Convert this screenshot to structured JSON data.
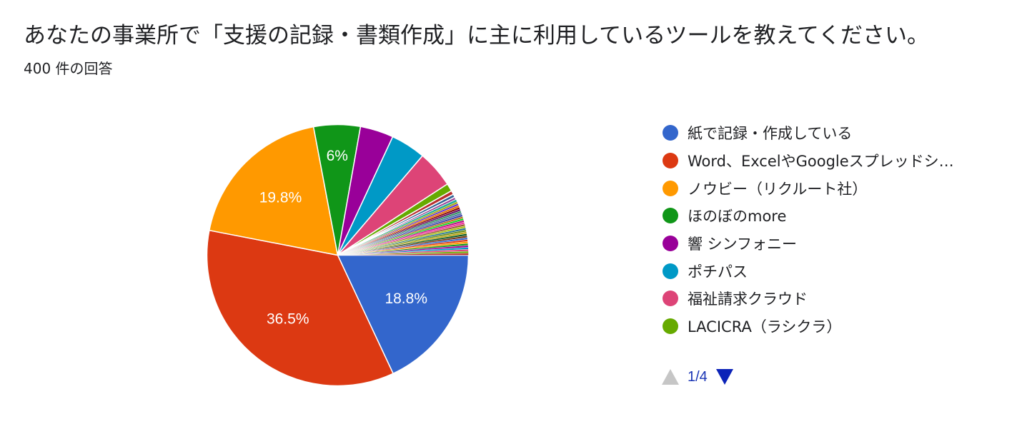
{
  "question": {
    "title": "あなたの事業所で「支援の記録・書類作成」に主に利用しているツールを教えてください。",
    "response_count": "400 件の回答"
  },
  "chart_data": {
    "type": "pie",
    "title": "あなたの事業所で「支援の記録・書類作成」に主に利用しているツールを教えてください。",
    "slices": [
      {
        "label": "紙で記録・作成している",
        "value": 18.8,
        "color": "#3366cc",
        "data_label": "18.8%"
      },
      {
        "label": "Word、ExcelやGoogleスプレッドシ…",
        "value": 36.5,
        "color": "#dc3912",
        "data_label": "36.5%"
      },
      {
        "label": "ノウビー（リクルート社）",
        "value": 19.8,
        "color": "#ff9900",
        "data_label": "19.8%"
      },
      {
        "label": "ほのぼのmore",
        "value": 6.0,
        "color": "#109618",
        "data_label": "6%"
      },
      {
        "label": "響 シンフォニー",
        "value": 4.3,
        "color": "#990099",
        "data_label": ""
      },
      {
        "label": "ポチパス",
        "value": 4.5,
        "color": "#0099c6",
        "data_label": ""
      },
      {
        "label": "福祉請求クラウド",
        "value": 4.8,
        "color": "#dd4477",
        "data_label": ""
      },
      {
        "label": "LACICRA（ラシクラ）",
        "value": 1.0,
        "color": "#66aa00",
        "data_label": ""
      },
      {
        "label": "",
        "value": 0.5,
        "color": "#b82e2e",
        "data_label": ""
      },
      {
        "label": "",
        "value": 0.4,
        "color": "#316395",
        "data_label": ""
      },
      {
        "label": "",
        "value": 0.35,
        "color": "#994499",
        "data_label": ""
      },
      {
        "label": "",
        "value": 0.3,
        "color": "#22aa99",
        "data_label": ""
      },
      {
        "label": "",
        "value": 0.25,
        "color": "#aaaa11",
        "data_label": ""
      },
      {
        "label": "",
        "value": 0.25,
        "color": "#6633cc",
        "data_label": ""
      },
      {
        "label": "",
        "value": 0.25,
        "color": "#e67300",
        "data_label": ""
      },
      {
        "label": "",
        "value": 0.25,
        "color": "#8b0707",
        "data_label": ""
      },
      {
        "label": "",
        "value": 0.25,
        "color": "#651067",
        "data_label": ""
      },
      {
        "label": "",
        "value": 0.25,
        "color": "#329262",
        "data_label": ""
      },
      {
        "label": "",
        "value": 0.25,
        "color": "#5574a6",
        "data_label": ""
      },
      {
        "label": "",
        "value": 0.25,
        "color": "#3b3eac",
        "data_label": ""
      },
      {
        "label": "",
        "value": 0.25,
        "color": "#b77322",
        "data_label": ""
      },
      {
        "label": "",
        "value": 0.25,
        "color": "#16d620",
        "data_label": ""
      },
      {
        "label": "",
        "value": 0.25,
        "color": "#b91383",
        "data_label": ""
      },
      {
        "label": "",
        "value": 0.25,
        "color": "#f4359e",
        "data_label": ""
      },
      {
        "label": "",
        "value": 0.25,
        "color": "#9c5935",
        "data_label": ""
      },
      {
        "label": "",
        "value": 0.25,
        "color": "#a9c413",
        "data_label": ""
      },
      {
        "label": "",
        "value": 0.25,
        "color": "#2a778d",
        "data_label": ""
      },
      {
        "label": "",
        "value": 0.25,
        "color": "#668d1c",
        "data_label": ""
      },
      {
        "label": "",
        "value": 0.25,
        "color": "#bea413",
        "data_label": ""
      },
      {
        "label": "",
        "value": 0.25,
        "color": "#0c5922",
        "data_label": ""
      },
      {
        "label": "",
        "value": 0.25,
        "color": "#743411",
        "data_label": ""
      },
      {
        "label": "",
        "value": 0.25,
        "color": "#3366cc",
        "data_label": ""
      },
      {
        "label": "",
        "value": 0.25,
        "color": "#dc3912",
        "data_label": ""
      },
      {
        "label": "",
        "value": 0.25,
        "color": "#ff9900",
        "data_label": ""
      },
      {
        "label": "",
        "value": 0.25,
        "color": "#109618",
        "data_label": ""
      },
      {
        "label": "",
        "value": 0.25,
        "color": "#990099",
        "data_label": ""
      },
      {
        "label": "",
        "value": 0.25,
        "color": "#0099c6",
        "data_label": ""
      },
      {
        "label": "",
        "value": 0.25,
        "color": "#dd4477",
        "data_label": ""
      },
      {
        "label": "",
        "value": 0.25,
        "color": "#66aa00",
        "data_label": ""
      },
      {
        "label": "",
        "value": 0.25,
        "color": "#b82e2e",
        "data_label": ""
      }
    ],
    "legend_position": "right"
  },
  "legend": {
    "items": [
      {
        "label": "紙で記録・作成している",
        "color": "#3366cc"
      },
      {
        "label": "Word、ExcelやGoogleスプレッドシ…",
        "color": "#dc3912"
      },
      {
        "label": "ノウビー（リクルート社）",
        "color": "#ff9900"
      },
      {
        "label": "ほのぼのmore",
        "color": "#109618"
      },
      {
        "label": "響 シンフォニー",
        "color": "#990099"
      },
      {
        "label": "ポチパス",
        "color": "#0099c6"
      },
      {
        "label": "福祉請求クラウド",
        "color": "#dd4477"
      },
      {
        "label": "LACICRA（ラシクラ）",
        "color": "#66aa00"
      }
    ]
  },
  "pager": {
    "text": "1/4",
    "prev_icon": "triangle-up-icon",
    "next_icon": "triangle-down-icon",
    "prev_enabled": false,
    "next_enabled": true
  }
}
